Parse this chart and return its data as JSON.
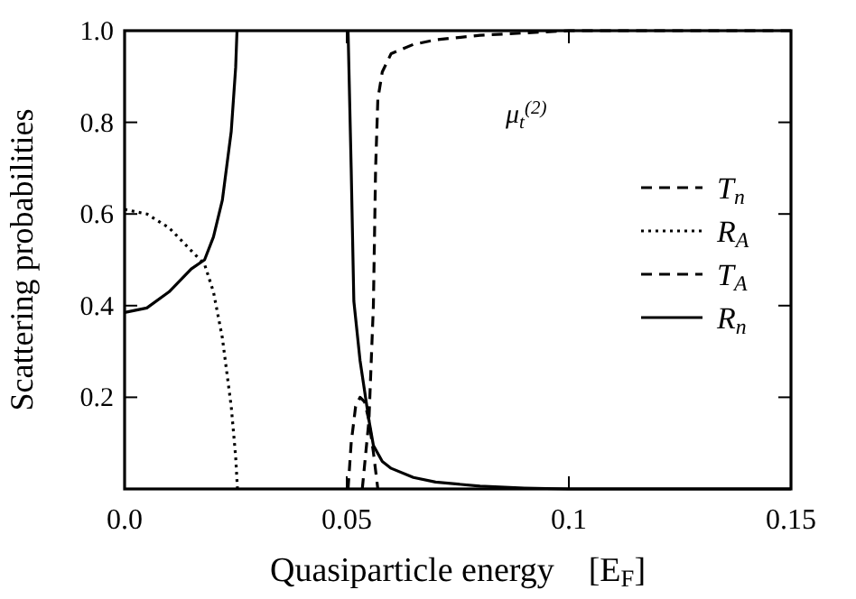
{
  "chart_data": {
    "type": "line",
    "xlabel": "Quasiparticle energy    [E$_{F}$]",
    "ylabel": "Scattering probabilities",
    "xlim": [
      0,
      0.15
    ],
    "ylim": [
      0,
      1
    ],
    "xticks": [
      {
        "value": 0,
        "label": "0.0"
      },
      0.05,
      0.1,
      0.15
    ],
    "yticks": [
      0.2,
      0.4,
      0.6,
      0.8,
      {
        "value": 1,
        "label": "1.0"
      }
    ],
    "grid": false,
    "legend": "right",
    "annotations": [
      "μ$_{t}$$^{(2)}$"
    ],
    "series": [
      {
        "name": "T$_{n}$",
        "color": "#000000",
        "line_style": "dashed",
        "x": [
          0.0535,
          0.055,
          0.056,
          0.0565,
          0.057,
          0.058,
          0.06,
          0.065,
          0.07,
          0.08,
          0.1,
          0.15
        ],
        "values": [
          0,
          0.15,
          0.4,
          0.7,
          0.85,
          0.91,
          0.95,
          0.97,
          0.98,
          0.99,
          1,
          1
        ]
      },
      {
        "name": "R$_{A}$",
        "color": "#000000",
        "line_style": "dotted",
        "x": [
          0,
          0.005,
          0.01,
          0.015,
          0.018,
          0.02,
          0.022,
          0.024,
          0.025,
          0.0254
        ],
        "values": [
          0.61,
          0.6,
          0.57,
          0.52,
          0.49,
          0.43,
          0.33,
          0.18,
          0.07,
          0
        ]
      },
      {
        "name": "T$_{A}$",
        "color": "#000000",
        "line_style": "dashed",
        "x": [
          0.0503,
          0.051,
          0.052,
          0.053,
          0.054,
          0.055,
          0.056,
          0.057
        ],
        "values": [
          0,
          0.1,
          0.18,
          0.2,
          0.19,
          0.15,
          0.08,
          0
        ]
      },
      {
        "name": "R$_{n}$",
        "color": "#000000",
        "line_style": "solid",
        "x": [
          0,
          0.005,
          0.01,
          0.015,
          0.018,
          0.02,
          0.022,
          0.024,
          0.025,
          0.0253,
          0.035,
          0.0503,
          0.051,
          0.0516,
          0.053,
          0.055,
          0.056,
          0.058,
          0.06,
          0.065,
          0.07,
          0.08,
          0.09,
          0.1,
          0.15
        ],
        "values": [
          0.385,
          0.395,
          0.43,
          0.48,
          0.5,
          0.55,
          0.63,
          0.78,
          0.92,
          1,
          null,
          1,
          0.7,
          0.41,
          0.28,
          0.15,
          0.095,
          0.06,
          0.045,
          0.025,
          0.015,
          0.006,
          0.002,
          0,
          0
        ]
      }
    ]
  }
}
